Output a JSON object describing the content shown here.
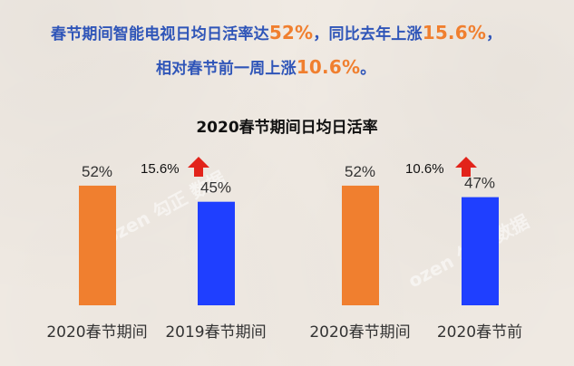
{
  "headline": {
    "line1_prefix": "春节期间智能电视日均日活率达",
    "line1_num1": "52%",
    "line1_mid": "，同比去年上涨",
    "line1_num2": "15.6%",
    "line1_suffix": "，",
    "line2_prefix": "相对春节前一周上涨",
    "line2_num": "10.6%",
    "line2_suffix": "。"
  },
  "colors": {
    "headline": "#2f55b8",
    "highlight": "#f07f2f",
    "bar_current": "#f07f2f",
    "bar_compare": "#1f3fff",
    "arrow": "#e2231a"
  },
  "chart_data": [
    {
      "type": "bar",
      "title": "2020春节期间日均日活率",
      "categories": [
        "2020春节期间",
        "2019春节期间"
      ],
      "values": [
        52,
        45
      ],
      "value_labels": [
        "52%",
        "45%"
      ],
      "change_label": "15.6%",
      "change_icon": "up-arrow-icon"
    },
    {
      "type": "bar",
      "categories": [
        "2020春节期间",
        "2020春节前"
      ],
      "values": [
        52,
        47
      ],
      "value_labels": [
        "52%",
        "47%"
      ],
      "change_label": "10.6%",
      "change_icon": "up-arrow-icon"
    }
  ],
  "watermark": {
    "text_left": "ozen 勾正 数据",
    "text_right": "ozen 勾正 数据"
  }
}
